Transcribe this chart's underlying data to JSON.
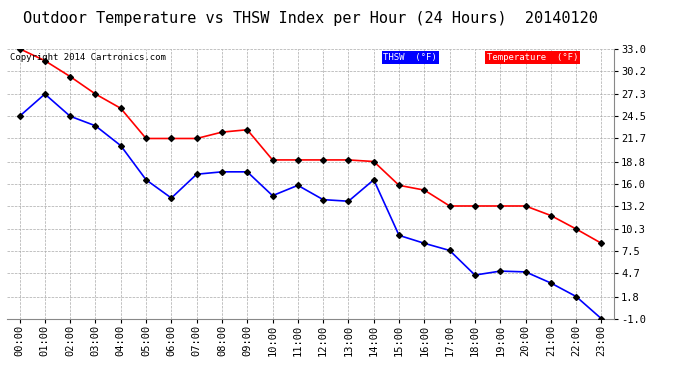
{
  "title": "Outdoor Temperature vs THSW Index per Hour (24 Hours)  20140120",
  "copyright": "Copyright 2014 Cartronics.com",
  "x_labels": [
    "00:00",
    "01:00",
    "02:00",
    "03:00",
    "04:00",
    "05:00",
    "06:00",
    "07:00",
    "08:00",
    "09:00",
    "10:00",
    "11:00",
    "12:00",
    "13:00",
    "14:00",
    "15:00",
    "16:00",
    "17:00",
    "18:00",
    "19:00",
    "20:00",
    "21:00",
    "22:00",
    "23:00"
  ],
  "temperature": [
    33.0,
    31.5,
    29.5,
    27.3,
    25.5,
    21.7,
    21.7,
    21.7,
    22.5,
    22.8,
    19.0,
    19.0,
    19.0,
    19.0,
    18.8,
    15.8,
    15.2,
    13.2,
    13.2,
    13.2,
    13.2,
    12.0,
    10.3,
    8.5
  ],
  "thsw": [
    24.5,
    27.3,
    24.5,
    23.3,
    20.8,
    16.5,
    14.2,
    17.2,
    17.5,
    17.5,
    14.5,
    15.8,
    14.0,
    13.8,
    16.5,
    9.5,
    8.5,
    7.6,
    4.5,
    5.0,
    4.9,
    3.5,
    1.8,
    -1.0
  ],
  "temp_color": "#FF0000",
  "thsw_color": "#0000FF",
  "background_color": "#FFFFFF",
  "grid_color": "#AAAAAA",
  "ylim_min": -1.0,
  "ylim_max": 33.0,
  "yticks": [
    -1.0,
    1.8,
    4.7,
    7.5,
    10.3,
    13.2,
    16.0,
    18.8,
    21.7,
    24.5,
    27.3,
    30.2,
    33.0
  ],
  "legend_thsw_label": "THSW  (°F)",
  "legend_temp_label": "Temperature  (°F)",
  "title_fontsize": 11,
  "tick_fontsize": 7.5,
  "copyright_fontsize": 6.5,
  "marker": "D",
  "marker_size": 3
}
